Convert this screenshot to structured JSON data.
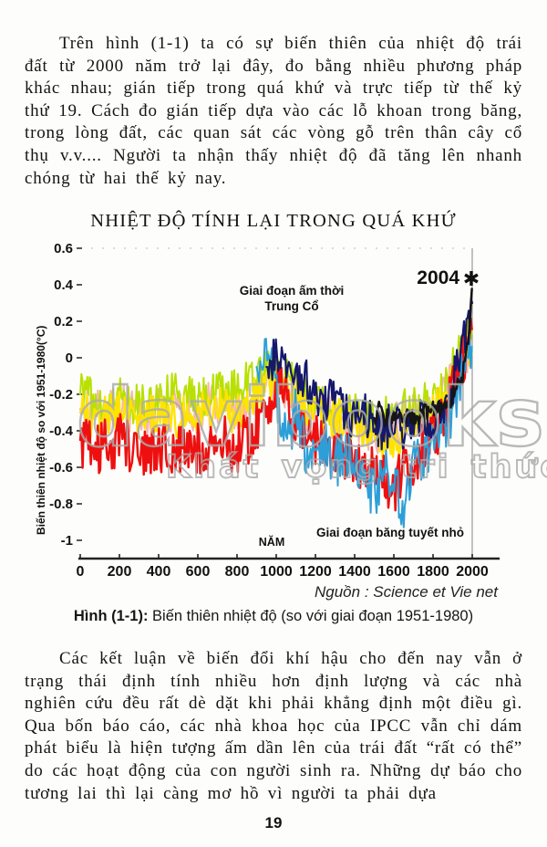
{
  "page": {
    "paragraph1": "Trên hình (1-1) ta có sự biến thiên của nhiệt độ trái đất từ 2000 năm trở lại đây, đo bằng nhiều phương pháp khác nhau; gián tiếp trong quá khứ và trực tiếp từ thế kỷ thứ 19. Cách đo gián tiếp dựa vào các lỗ khoan trong băng, trong lòng đất, các quan sát các vòng gỗ trên thân cây cổ thụ v.v.... Người ta nhận thấy nhiệt độ đã tăng lên nhanh chóng từ hai thế kỷ nay.",
    "paragraph2": "Các kết luận về biến đổi khí hậu cho đến nay vẫn ở trạng thái định tính nhiều hơn định lượng và các nhà nghiên cứu đều rất dè dặt khi phải khẳng định một điều gì. Qua bốn báo cáo, các nhà khoa học của IPCC vẫn chỉ dám phát biểu là hiện tượng ấm dần lên của trái đất “rất có thể” do các hoạt động của con người sinh ra. Những dự báo cho tương lai thì lại càng mơ hồ vì người ta phải dựa",
    "page_number": "19"
  },
  "figure": {
    "title": "NHIỆT ĐỘ TÍNH LẠI TRONG QUÁ KHỨ",
    "source": "Nguồn : Science et Vie net",
    "caption_label": "Hình (1-1):",
    "caption_text": " Biến thiên nhiệt độ (so với giai đoạn 1951-1980)"
  },
  "watermark": {
    "line1": "davibooks",
    "line2": "Khát vọng tri thức"
  },
  "chart_data": {
    "type": "line",
    "title": "NHIỆT ĐỘ TÍNH LẠI TRONG QUÁ KHỨ",
    "xlabel": "NĂM",
    "ylabel": "Biến thiên nhiệt độ so với 1951-1980(°C)",
    "xlim": [
      0,
      2050
    ],
    "ylim": [
      -1.1,
      0.6
    ],
    "grid": false,
    "legend": "none",
    "x_ticks": [
      {
        "value": 0,
        "label": "0"
      },
      {
        "value": 200,
        "label": "200"
      },
      {
        "value": 400,
        "label": "400"
      },
      {
        "value": 600,
        "label": "600"
      },
      {
        "value": 800,
        "label": "800"
      },
      {
        "value": 1000,
        "label": "1000"
      },
      {
        "value": 1200,
        "label": "1200"
      },
      {
        "value": 1400,
        "label": "1400"
      },
      {
        "value": 1600,
        "label": "1600"
      },
      {
        "value": 1800,
        "label": "1800"
      },
      {
        "value": 2000,
        "label": "2000"
      }
    ],
    "y_ticks": [
      {
        "value": 0.6,
        "label": "0.6"
      },
      {
        "value": 0.4,
        "label": "0.4"
      },
      {
        "value": 0.2,
        "label": "0.2"
      },
      {
        "value": 0,
        "label": "0"
      },
      {
        "value": -0.2,
        "label": "-0.2"
      },
      {
        "value": -0.4,
        "label": "-0.4"
      },
      {
        "value": -0.6,
        "label": "-0.6"
      },
      {
        "value": -0.8,
        "label": "-0.8"
      },
      {
        "value": -1,
        "label": "-1"
      }
    ],
    "annotations": {
      "warm_period_line1": "Giai đoạn ấm thời",
      "warm_period_line2": "Trung Cổ",
      "little_ice_age": "Giai đoạn băng tuyết nhỏ",
      "marker_2004": "2004",
      "marker_symbol": "✱"
    },
    "series": [
      {
        "name": "pink-reconstruction",
        "color": "#f6b6b6",
        "width": 2,
        "jitter": 0.13,
        "seed": 3,
        "start_year": 0,
        "step": 100,
        "values": [
          -0.28,
          -0.3,
          -0.25,
          -0.32,
          -0.28,
          -0.3,
          -0.28,
          -0.25,
          -0.28,
          -0.2,
          -0.12,
          -0.25,
          -0.3,
          -0.35,
          -0.32,
          -0.4,
          -0.38,
          -0.32,
          -0.28,
          -0.12,
          0.08
        ]
      },
      {
        "name": "chartreuse-reconstruction",
        "color": "#b8e000",
        "width": 2,
        "jitter": 0.12,
        "seed": 5,
        "start_year": 0,
        "step": 100,
        "values": [
          -0.2,
          -0.24,
          -0.2,
          -0.26,
          -0.22,
          -0.2,
          -0.24,
          -0.2,
          -0.16,
          -0.1,
          -0.04,
          -0.16,
          -0.22,
          -0.26,
          -0.3,
          -0.34,
          -0.3,
          -0.28,
          -0.24,
          -0.06,
          0.15
        ]
      },
      {
        "name": "yellow-reconstruction",
        "color": "#ffe400",
        "width": 2.3,
        "jitter": 0.12,
        "seed": 7,
        "start_year": 0,
        "step": 100,
        "values": [
          -0.3,
          -0.33,
          -0.28,
          -0.35,
          -0.3,
          -0.32,
          -0.3,
          -0.28,
          -0.3,
          -0.22,
          -0.12,
          -0.22,
          -0.3,
          -0.33,
          -0.36,
          -0.42,
          -0.45,
          -0.4,
          -0.32,
          -0.12,
          0.1
        ]
      },
      {
        "name": "red-reconstruction",
        "color": "#ee1010",
        "width": 2.5,
        "jitter": 0.15,
        "seed": 11,
        "start_year": 0,
        "step": 100,
        "values": [
          -0.45,
          -0.5,
          -0.45,
          -0.55,
          -0.48,
          -0.52,
          -0.5,
          -0.45,
          -0.5,
          -0.38,
          -0.15,
          -0.35,
          -0.45,
          -0.5,
          -0.55,
          -0.62,
          -0.72,
          -0.55,
          -0.45,
          -0.2,
          0.18
        ]
      },
      {
        "name": "light-blue-reconstruction",
        "color": "#2d9fd8",
        "width": 2,
        "jitter": 0.14,
        "seed": 13,
        "start_year": 900,
        "step": 50,
        "values": [
          -0.05,
          0.1,
          -0.2,
          -0.45,
          -0.3,
          -0.5,
          -0.55,
          -0.45,
          -0.6,
          -0.5,
          -0.55,
          -0.65,
          -0.75,
          -0.6,
          -0.7,
          -0.8,
          -0.6,
          -0.55,
          -0.5,
          -0.4,
          -0.3,
          -0.05,
          0.1
        ]
      },
      {
        "name": "navy-reconstruction",
        "color": "#15186b",
        "width": 2.2,
        "jitter": 0.12,
        "seed": 17,
        "start_year": 950,
        "step": 50,
        "values": [
          -0.05,
          0.0,
          -0.1,
          -0.15,
          -0.1,
          -0.2,
          -0.25,
          -0.2,
          -0.3,
          -0.35,
          -0.3,
          -0.35,
          -0.4,
          -0.35,
          -0.4,
          -0.35,
          -0.3,
          -0.35,
          -0.25,
          -0.15,
          0.05,
          0.3
        ]
      },
      {
        "name": "black-instrumental",
        "color": "#151515",
        "width": 2.5,
        "jitter": 0.05,
        "seed": 19,
        "start_year": 1500,
        "step": 25,
        "values": [
          -0.33,
          -0.28,
          -0.35,
          -0.3,
          -0.32,
          -0.28,
          -0.33,
          -0.3,
          -0.32,
          -0.32,
          -0.28,
          -0.3,
          -0.28,
          -0.3,
          -0.25,
          -0.28,
          -0.2,
          -0.15,
          -0.1,
          0.05,
          0.38
        ]
      }
    ]
  }
}
